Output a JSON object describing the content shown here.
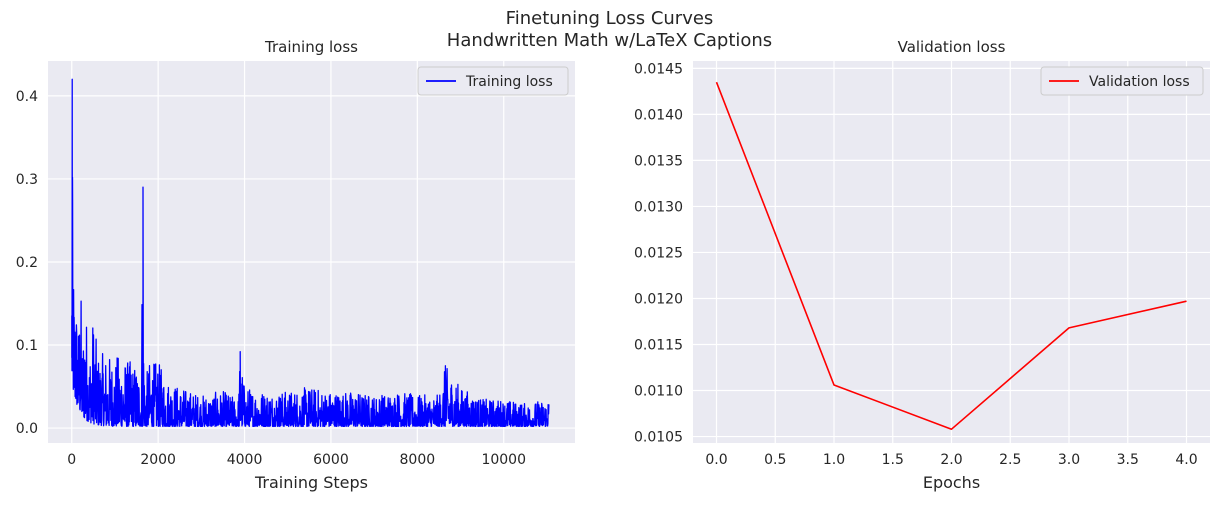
{
  "figure": {
    "suptitle_line1": "Finetuning Loss Curves",
    "suptitle_line2": "Handwritten Math w/LaTeX Captions",
    "background": "#eaeaf2",
    "grid_color": "#ffffff"
  },
  "chart_data": [
    {
      "type": "line",
      "title": "Training loss",
      "xlabel": "Training Steps",
      "ylabel": "",
      "xlim": [
        -550,
        11650
      ],
      "ylim": [
        -0.018,
        0.442
      ],
      "xticks": [
        0,
        2000,
        4000,
        6000,
        8000,
        10000
      ],
      "xtick_labels": [
        "0",
        "2000",
        "4000",
        "6000",
        "8000",
        "10000"
      ],
      "yticks": [
        0.0,
        0.1,
        0.2,
        0.3,
        0.4
      ],
      "ytick_labels": [
        "0.0",
        "0.1",
        "0.2",
        "0.3",
        "0.4"
      ],
      "grid": true,
      "legend_position": "top-right",
      "series": [
        {
          "name": "Training loss",
          "color": "#0000ff",
          "note_points": "noisy curve; envelope of peaks listed, lower bound near 0",
          "x": [
            0,
            10,
            20,
            40,
            60,
            100,
            150,
            200,
            250,
            300,
            400,
            500,
            600,
            800,
            1000,
            1100,
            1200,
            1400,
            1600,
            1650,
            1680,
            1700,
            1800,
            2000,
            2200,
            2500,
            3000,
            3500,
            3850,
            3900,
            4000,
            4500,
            5000,
            5500,
            6000,
            6500,
            7000,
            7500,
            8000,
            8500,
            8650,
            9000,
            9500,
            10000,
            10500,
            11000,
            11050
          ],
          "y": [
            0.135,
            0.42,
            0.275,
            0.21,
            0.17,
            0.165,
            0.12,
            0.19,
            0.1,
            0.17,
            0.09,
            0.14,
            0.09,
            0.09,
            0.085,
            0.09,
            0.085,
            0.08,
            0.07,
            0.29,
            0.08,
            0.06,
            0.08,
            0.08,
            0.06,
            0.05,
            0.04,
            0.045,
            0.035,
            0.092,
            0.05,
            0.045,
            0.045,
            0.05,
            0.045,
            0.045,
            0.04,
            0.045,
            0.04,
            0.04,
            0.075,
            0.05,
            0.035,
            0.035,
            0.03,
            0.035,
            0.045
          ]
        }
      ]
    },
    {
      "type": "line",
      "title": "Validation loss",
      "xlabel": "Epochs",
      "ylabel": "",
      "xlim": [
        -0.2,
        4.2
      ],
      "ylim": [
        0.01043,
        0.01458
      ],
      "xticks": [
        0.0,
        0.5,
        1.0,
        1.5,
        2.0,
        2.5,
        3.0,
        3.5,
        4.0
      ],
      "xtick_labels": [
        "0.0",
        "0.5",
        "1.0",
        "1.5",
        "2.0",
        "2.5",
        "3.0",
        "3.5",
        "4.0"
      ],
      "yticks": [
        0.0105,
        0.011,
        0.0115,
        0.012,
        0.0125,
        0.013,
        0.0135,
        0.014,
        0.0145
      ],
      "ytick_labels": [
        "0.0105",
        "0.0110",
        "0.0115",
        "0.0120",
        "0.0125",
        "0.0130",
        "0.0135",
        "0.0140",
        "0.0145"
      ],
      "grid": true,
      "legend_position": "top-right",
      "series": [
        {
          "name": "Validation loss",
          "color": "#ff0000",
          "x": [
            0,
            1,
            2,
            3,
            4
          ],
          "y": [
            0.01435,
            0.01106,
            0.01058,
            0.01168,
            0.01197
          ]
        }
      ]
    }
  ]
}
